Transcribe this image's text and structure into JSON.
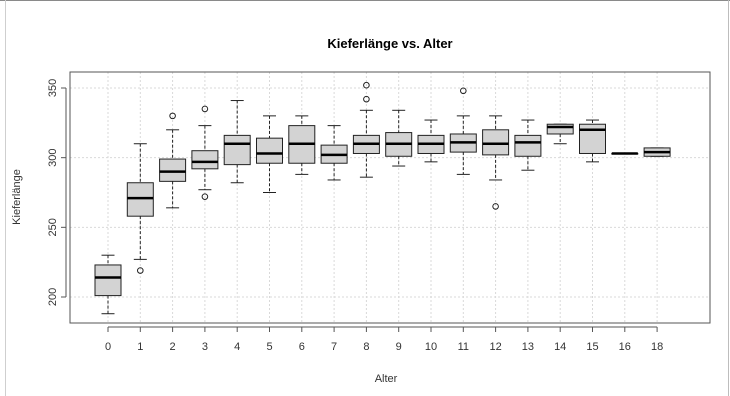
{
  "colors": {
    "box_fill": "#d3d3d3",
    "stroke": "#222222",
    "grid": "#d9d9d9",
    "frame": "#555555"
  },
  "chart_data": {
    "type": "box",
    "title": "Kieferlänge vs. Alter",
    "xlabel": "Alter",
    "ylabel": "Kieferlänge",
    "ylim": [
      180,
      370
    ],
    "yticks": [
      200,
      250,
      300,
      350
    ],
    "grid": true,
    "legend": "none",
    "categories": [
      "0",
      "1",
      "2",
      "3",
      "4",
      "5",
      "6",
      "7",
      "8",
      "9",
      "10",
      "11",
      "12",
      "13",
      "14",
      "15",
      "16",
      "18"
    ],
    "boxes": [
      {
        "min": 188,
        "q1": 201,
        "median": 214,
        "q3": 223,
        "max": 230,
        "outliers": []
      },
      {
        "min": 227,
        "q1": 258,
        "median": 271,
        "q3": 282,
        "max": 310,
        "outliers": [
          219
        ]
      },
      {
        "min": 264,
        "q1": 283,
        "median": 290,
        "q3": 299,
        "max": 320,
        "outliers": [
          330
        ]
      },
      {
        "min": 277,
        "q1": 292,
        "median": 297,
        "q3": 305,
        "max": 323,
        "outliers": [
          272,
          335
        ]
      },
      {
        "min": 282,
        "q1": 295,
        "median": 310,
        "q3": 316,
        "max": 341,
        "outliers": []
      },
      {
        "min": 275,
        "q1": 296,
        "median": 303,
        "q3": 314,
        "max": 330,
        "outliers": []
      },
      {
        "min": 288,
        "q1": 296,
        "median": 310,
        "q3": 323,
        "max": 330,
        "outliers": []
      },
      {
        "min": 284,
        "q1": 296,
        "median": 302,
        "q3": 309,
        "max": 323,
        "outliers": []
      },
      {
        "min": 286,
        "q1": 303,
        "median": 310,
        "q3": 316,
        "max": 334,
        "outliers": [
          342,
          352
        ]
      },
      {
        "min": 294,
        "q1": 301,
        "median": 310,
        "q3": 318,
        "max": 334,
        "outliers": []
      },
      {
        "min": 297,
        "q1": 303,
        "median": 310,
        "q3": 316,
        "max": 327,
        "outliers": []
      },
      {
        "min": 288,
        "q1": 304,
        "median": 311,
        "q3": 317,
        "max": 330,
        "outliers": [
          348
        ]
      },
      {
        "min": 284,
        "q1": 302,
        "median": 310,
        "q3": 320,
        "max": 330,
        "outliers": [
          265
        ]
      },
      {
        "min": 291,
        "q1": 301,
        "median": 311,
        "q3": 316,
        "max": 327,
        "outliers": []
      },
      {
        "min": 310,
        "q1": 317,
        "median": 322,
        "q3": 324,
        "max": 324,
        "outliers": []
      },
      {
        "min": 297,
        "q1": 303,
        "median": 320,
        "q3": 324,
        "max": 327,
        "outliers": []
      },
      {
        "min": 303,
        "q1": 303,
        "median": 303,
        "q3": 303,
        "max": 303,
        "outliers": []
      },
      {
        "min": 301,
        "q1": 301,
        "median": 304,
        "q3": 307,
        "max": 307,
        "outliers": []
      }
    ]
  }
}
